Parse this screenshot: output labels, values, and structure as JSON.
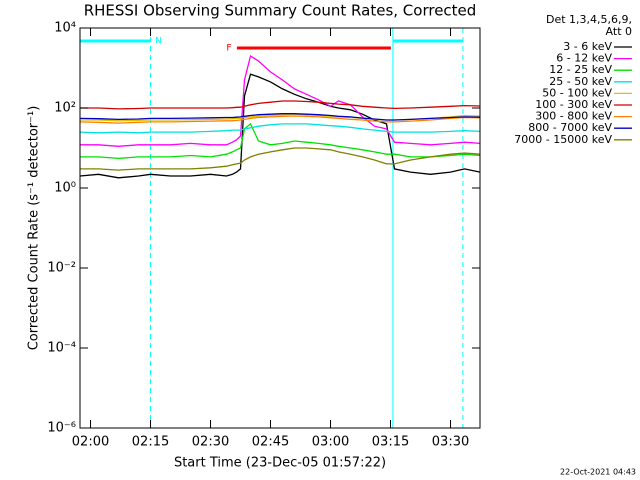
{
  "chart_data": {
    "type": "line",
    "title": "RHESSI Observing Summary Count Rates, Corrected",
    "xlabel": "Start Time (23-Dec-05 01:57:22)",
    "ylabel": "Corrected Count Rate (s⁻¹ detector⁻¹)",
    "legend_title": [
      "Det 1,3,4,5,6,9,",
      "Att 0"
    ],
    "timestamp": "22-Oct-2021 04:43",
    "ylog": true,
    "xlim": [
      117.37,
      217.37
    ],
    "ylim": [
      1e-06,
      10000
    ],
    "xticks": [
      {
        "value": 120,
        "label": "02:00"
      },
      {
        "value": 135,
        "label": "02:15"
      },
      {
        "value": 150,
        "label": "02:30"
      },
      {
        "value": 165,
        "label": "02:45"
      },
      {
        "value": 180,
        "label": "03:00"
      },
      {
        "value": 195,
        "label": "03:15"
      },
      {
        "value": 210,
        "label": "03:30"
      }
    ],
    "yticks": [
      {
        "value": 1e-06,
        "label": "10⁻⁶"
      },
      {
        "value": 0.0001,
        "label": "10⁻⁴"
      },
      {
        "value": 0.01,
        "label": "10⁻²"
      },
      {
        "value": 1,
        "label": "10⁰"
      },
      {
        "value": 100,
        "label": "10²"
      },
      {
        "value": 10000,
        "label": "10⁴"
      }
    ],
    "x": [
      117.4,
      122,
      127,
      132,
      135,
      140,
      145,
      150,
      154,
      155.5,
      156.5,
      157.5,
      158.5,
      160,
      162,
      165,
      168,
      171,
      174,
      177,
      180,
      182,
      185,
      188,
      191,
      194,
      196,
      200,
      205,
      210,
      213.5,
      217.4
    ],
    "series": [
      {
        "name": "3 - 6 keV",
        "color": "#000000",
        "values": [
          2,
          2.2,
          1.8,
          2,
          2.2,
          2,
          2,
          2.2,
          2,
          2.2,
          2.5,
          3,
          200,
          700,
          600,
          450,
          300,
          220,
          170,
          140,
          110,
          100,
          90,
          70,
          50,
          40,
          3,
          2.5,
          2.2,
          2.5,
          3,
          2.5
        ]
      },
      {
        "name": "6 - 12 keV",
        "color": "#ff00ff",
        "values": [
          12,
          12,
          11,
          12,
          12,
          12,
          13,
          12,
          12,
          14,
          16,
          20,
          500,
          2000,
          1500,
          800,
          500,
          300,
          220,
          160,
          110,
          150,
          120,
          60,
          35,
          30,
          14,
          13,
          12,
          13,
          14,
          13
        ]
      },
      {
        "name": "12 - 25 keV",
        "color": "#00e000",
        "values": [
          6,
          6,
          5.5,
          6,
          6,
          6,
          6.5,
          6,
          7,
          8,
          9,
          10,
          30,
          40,
          15,
          12,
          13,
          15,
          14,
          13,
          12,
          11,
          10,
          9,
          8,
          7,
          7,
          6,
          6,
          6.5,
          7,
          6.5
        ]
      },
      {
        "name": "25 - 50 keV",
        "color": "#00e0e0",
        "values": [
          25,
          24,
          25,
          24,
          25,
          25,
          25,
          26,
          27,
          28,
          28,
          28,
          30,
          32,
          35,
          38,
          40,
          40,
          40,
          38,
          36,
          35,
          33,
          30,
          28,
          26,
          25,
          25,
          25,
          26,
          27,
          26
        ]
      },
      {
        "name": "50 - 100 keV",
        "color": "#e0c000",
        "values": [
          50,
          50,
          48,
          49,
          50,
          50,
          51,
          52,
          53,
          54,
          55,
          55,
          58,
          60,
          62,
          65,
          68,
          70,
          68,
          65,
          62,
          60,
          58,
          55,
          52,
          50,
          50,
          52,
          55,
          60,
          65,
          63
        ]
      },
      {
        "name": "100 - 300 keV",
        "color": "#d00000",
        "values": [
          100,
          100,
          95,
          97,
          100,
          100,
          100,
          100,
          100,
          102,
          104,
          105,
          110,
          120,
          130,
          140,
          150,
          150,
          145,
          140,
          130,
          125,
          120,
          110,
          105,
          100,
          98,
          100,
          105,
          110,
          115,
          112
        ]
      },
      {
        "name": "300 - 800 keV",
        "color": "#ff8000",
        "values": [
          45,
          44,
          42,
          44,
          45,
          45,
          46,
          47,
          48,
          48,
          49,
          50,
          52,
          55,
          58,
          60,
          62,
          63,
          62,
          60,
          57,
          55,
          52,
          50,
          47,
          45,
          45,
          47,
          50,
          55,
          58,
          57
        ]
      },
      {
        "name": "800 - 7000 keV",
        "color": "#0000c0",
        "values": [
          55,
          54,
          52,
          53,
          55,
          55,
          56,
          57,
          58,
          58,
          59,
          60,
          62,
          65,
          68,
          70,
          72,
          72,
          70,
          68,
          65,
          62,
          60,
          56,
          53,
          50,
          50,
          52,
          55,
          58,
          60,
          59
        ]
      },
      {
        "name": "7000 - 15000 keV",
        "color": "#808000",
        "values": [
          3,
          3,
          2.8,
          3,
          3,
          3,
          3,
          3.2,
          3.5,
          3.8,
          4,
          4.2,
          5,
          6,
          7,
          8,
          9,
          10,
          10,
          9.5,
          9,
          8,
          7,
          6,
          5,
          4,
          4,
          5,
          6,
          7,
          7.5,
          7
        ]
      }
    ],
    "annotations": [
      {
        "label": "N",
        "start": 117.37,
        "end": 135,
        "color": "#00ffff"
      },
      {
        "start": 195.6,
        "end": 213.1,
        "color": "#00ffff"
      },
      {
        "label": "F",
        "start": 156.6,
        "end": 195.1,
        "color": "#ff0000"
      }
    ],
    "vlines": [
      {
        "x": 117.37,
        "dashed": false,
        "color": "#00ffff"
      },
      {
        "x": 135,
        "dashed": true,
        "color": "#00ffff"
      },
      {
        "x": 195.6,
        "dashed": false,
        "color": "#00ffff"
      },
      {
        "x": 213.1,
        "dashed": true,
        "color": "#00ffff"
      }
    ]
  }
}
